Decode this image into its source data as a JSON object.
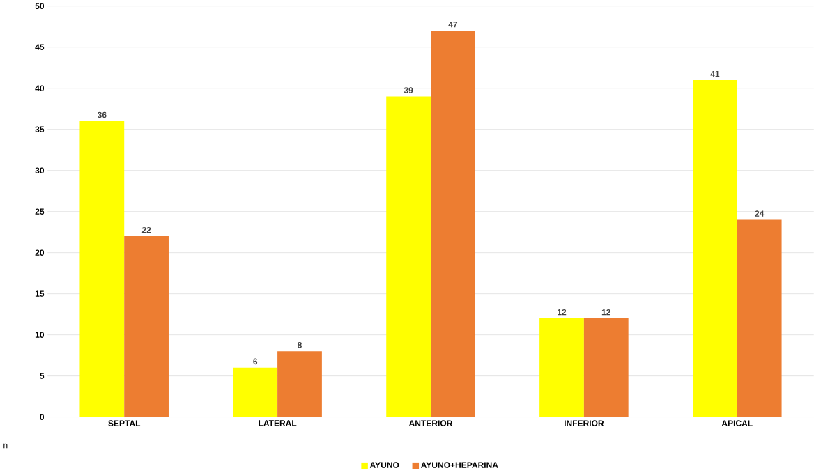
{
  "chart_data": {
    "type": "bar",
    "annotations": [
      "n"
    ],
    "categories": [
      "SEPTAL",
      "LATERAL",
      "ANTERIOR",
      "INFERIOR",
      "APICAL"
    ],
    "series": [
      {
        "name": "AYUNO",
        "color": "#ffff00",
        "values": [
          36,
          6,
          39,
          12,
          41
        ]
      },
      {
        "name": "AYUNO+HEPARINA",
        "color": "#ed7d31",
        "values": [
          22,
          8,
          47,
          12,
          24
        ]
      }
    ],
    "ylim": [
      0,
      50
    ],
    "yticks": [
      0,
      5,
      10,
      15,
      20,
      25,
      30,
      35,
      40,
      45,
      50
    ],
    "grid": "y",
    "legend": "bottom",
    "data_labels": true
  }
}
